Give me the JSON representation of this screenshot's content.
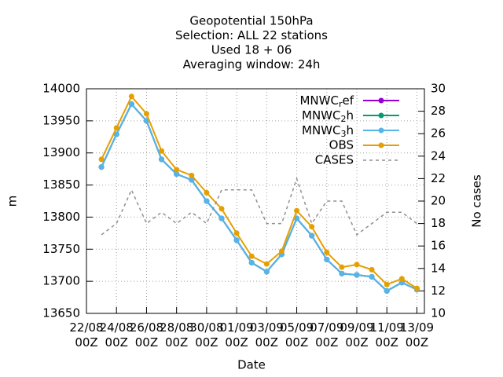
{
  "chart_data": {
    "type": "line",
    "title": [
      "Geopotential 150hPa",
      "Selection: ALL      22 stations",
      "Used  18 + 06",
      "Averaging window: 24h"
    ],
    "xlabel": "Date",
    "ylabel": "m",
    "y2label": "No cases",
    "x": [
      "23/08 00Z",
      "24/08 00Z",
      "25/08 00Z",
      "26/08 00Z",
      "27/08 00Z",
      "28/08 00Z",
      "29/08 00Z",
      "30/08 00Z",
      "31/08 00Z",
      "01/09 00Z",
      "02/09 00Z",
      "03/09 00Z",
      "04/09 00Z",
      "05/09 00Z",
      "06/09 00Z",
      "07/09 00Z",
      "08/09 00Z",
      "09/09 00Z",
      "10/09 00Z",
      "11/09 00Z",
      "12/09 00Z",
      "13/09 00Z"
    ],
    "xlim": [
      "22/08 00Z",
      "13/09 12Z"
    ],
    "xticks": [
      "22/08 00Z",
      "24/08 00Z",
      "26/08 00Z",
      "28/08 00Z",
      "30/08 00Z",
      "01/09 00Z",
      "03/09 00Z",
      "05/09 00Z",
      "07/09 00Z",
      "09/09 00Z",
      "11/09 00Z",
      "13/09 00Z"
    ],
    "ylim": [
      13650,
      14000
    ],
    "yticks": [
      13650,
      13700,
      13750,
      13800,
      13850,
      13900,
      13950,
      14000
    ],
    "y2lim": [
      10,
      30
    ],
    "y2ticks": [
      10,
      12,
      14,
      16,
      18,
      20,
      22,
      24,
      26,
      28,
      30
    ],
    "grid": true,
    "legend": "top-right",
    "series": [
      {
        "name": "MNWC_ref",
        "color": "#9400d3",
        "values": [
          13878,
          13929,
          13976,
          13950,
          13890,
          13867,
          13858,
          13825,
          13798,
          13764,
          13729,
          13715,
          13742,
          13798,
          13771,
          13734,
          13712,
          13710,
          13707,
          13685,
          13698,
          13687
        ]
      },
      {
        "name": "MNWC_2h",
        "color": "#009e73",
        "values": [
          13878,
          13929,
          13976,
          13950,
          13890,
          13867,
          13858,
          13825,
          13798,
          13764,
          13729,
          13715,
          13742,
          13798,
          13771,
          13734,
          13712,
          13710,
          13707,
          13685,
          13698,
          13687
        ]
      },
      {
        "name": "MNWC_3h",
        "color": "#56b4e9",
        "values": [
          13878,
          13929,
          13976,
          13950,
          13890,
          13867,
          13858,
          13825,
          13798,
          13764,
          13729,
          13715,
          13742,
          13798,
          13771,
          13734,
          13712,
          13710,
          13707,
          13685,
          13698,
          13687
        ]
      },
      {
        "name": "OBS",
        "color": "#e69f00",
        "values": [
          13890,
          13939,
          13988,
          13961,
          13903,
          13874,
          13865,
          13838,
          13813,
          13775,
          13739,
          13727,
          13747,
          13810,
          13785,
          13745,
          13722,
          13726,
          13718,
          13695,
          13704,
          13689
        ]
      },
      {
        "name": "CASES",
        "color": "#909090",
        "axis": "y2",
        "dashed": true,
        "values": [
          17,
          18,
          21,
          18,
          19,
          18,
          19,
          18,
          21,
          21,
          21,
          18,
          18,
          22,
          18,
          20,
          20,
          17,
          18,
          19,
          19,
          18
        ]
      }
    ]
  }
}
